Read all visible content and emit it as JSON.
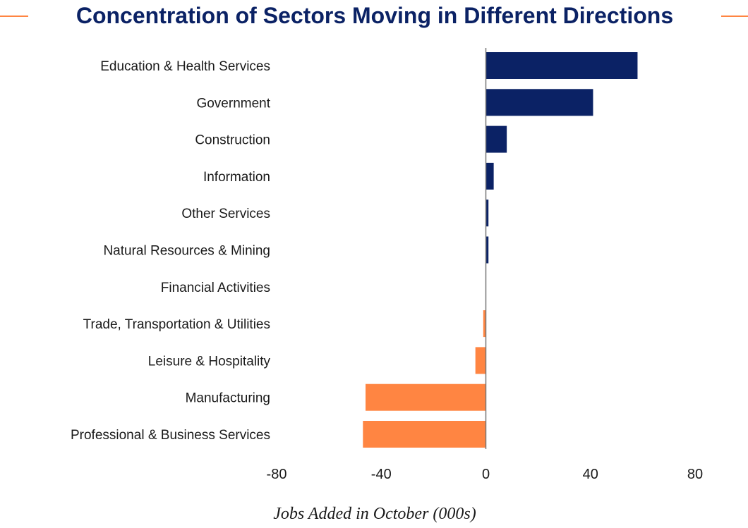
{
  "colors": {
    "positive": "#0b2265",
    "negative": "#ff8542",
    "title": "#0b2265",
    "title_rule": "#ff8542",
    "axis": "#777777"
  },
  "chart_data": {
    "type": "bar",
    "orientation": "horizontal",
    "title": "Concentration of Sectors Moving in Different Directions",
    "xlabel": "Jobs Added in October (000s)",
    "ylabel": "",
    "xlim": [
      -80,
      80
    ],
    "xticks": [
      -80,
      -40,
      0,
      40,
      80
    ],
    "grid": false,
    "categories": [
      "Education & Health Services",
      "Government",
      "Construction",
      "Information",
      "Other Services",
      "Natural Resources & Mining",
      "Financial Activities",
      "Trade, Transportation & Utilities",
      "Leisure & Hospitality",
      "Manufacturing",
      "Professional & Business Services"
    ],
    "values": [
      58,
      41,
      8,
      3,
      1,
      1,
      0,
      -1,
      -4,
      -46,
      -47
    ]
  }
}
